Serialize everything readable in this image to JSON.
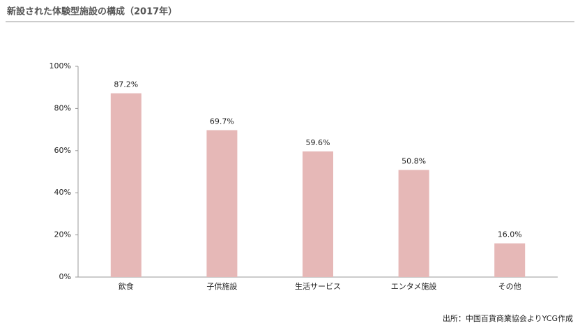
{
  "chart_data": {
    "type": "bar",
    "title": "新設された体験型施設の構成（2017年）",
    "source": "出所：中国百貨商業協会よりYCG作成",
    "categories": [
      "飲食",
      "子供施設",
      "生活サービス",
      "エンタメ施設",
      "その他"
    ],
    "values": [
      87.2,
      69.7,
      59.6,
      50.8,
      16.0
    ],
    "value_labels": [
      "87.2%",
      "69.7%",
      "59.6%",
      "50.8%",
      "16.0%"
    ],
    "color": "#e6b8b7",
    "ylim": [
      0,
      100
    ],
    "yticks": [
      {
        "value": 0,
        "label": "0%"
      },
      {
        "value": 20,
        "label": "20%"
      },
      {
        "value": 40,
        "label": "40%"
      },
      {
        "value": 60,
        "label": "60%"
      },
      {
        "value": 80,
        "label": "80%"
      },
      {
        "value": 100,
        "label": "100%"
      }
    ],
    "grid": false
  }
}
